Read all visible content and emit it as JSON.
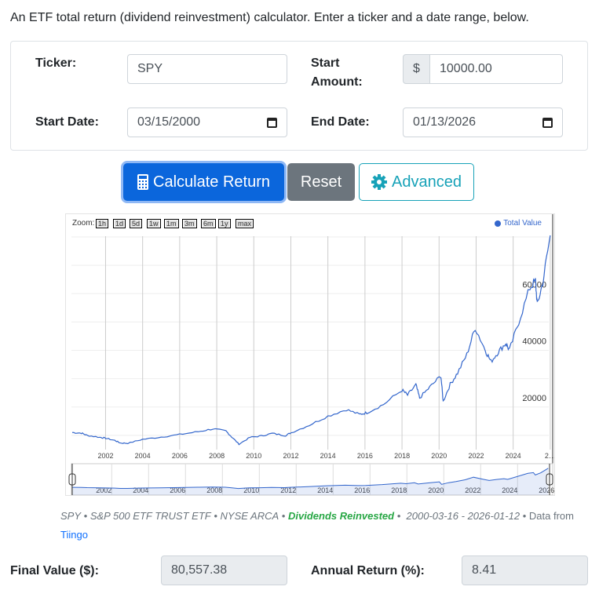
{
  "intro": "An ETF total return (dividend reinvestment) calculator. Enter a ticker and a date range, below.",
  "form": {
    "ticker_label": "Ticker:",
    "ticker_value": "SPY",
    "amount_label": "Start Amount:",
    "amount_prefix": "$",
    "amount_value": "10000.00",
    "start_label": "Start Date:",
    "start_value": "03/15/2000",
    "end_label": "End Date:",
    "end_value": "01/13/2026"
  },
  "buttons": {
    "calculate": "Calculate Return",
    "reset": "Reset",
    "advanced": "Advanced"
  },
  "chart_data": {
    "type": "line",
    "title": "",
    "legend": [
      "Total Value"
    ],
    "legend_position": "top-right",
    "series_color": "#3366cc",
    "zoom_label": "Zoom:",
    "zoom_buttons": [
      "1h",
      "1d",
      "5d",
      "1w",
      "1m",
      "3m",
      "6m",
      "1y",
      "max"
    ],
    "x_ticks": [
      "2002",
      "2004",
      "2006",
      "2008",
      "2010",
      "2012",
      "2014",
      "2016",
      "2018",
      "2020",
      "2022",
      "2024",
      "2…"
    ],
    "nav_ticks": [
      "2002",
      "2004",
      "2006",
      "2008",
      "2010",
      "2012",
      "2014",
      "2016",
      "2018",
      "2020",
      "2022",
      "2024",
      "2026"
    ],
    "y_ticks": [
      "20000",
      "40000",
      "60000"
    ],
    "ylim": [
      0,
      80000
    ],
    "series": [
      {
        "name": "Total Value",
        "x": [
          2000.2,
          2000.7,
          2001.0,
          2001.7,
          2002.0,
          2002.5,
          2002.8,
          2003.2,
          2004.0,
          2005.0,
          2006.0,
          2007.0,
          2007.8,
          2008.5,
          2008.8,
          2009.2,
          2009.8,
          2010.4,
          2011.0,
          2011.7,
          2012.0,
          2013.0,
          2014.0,
          2015.0,
          2015.7,
          2016.1,
          2017.0,
          2018.0,
          2018.3,
          2018.75,
          2018.95,
          2019.5,
          2020.1,
          2020.22,
          2020.6,
          2021.0,
          2021.5,
          2021.95,
          2022.5,
          2022.8,
          2023.2,
          2023.6,
          2023.8,
          2024.3,
          2024.9,
          2025.2,
          2025.3,
          2025.6,
          2026.0
        ],
        "y": [
          11000,
          10800,
          10000,
          9300,
          9000,
          8200,
          7300,
          7200,
          8600,
          9400,
          10300,
          11300,
          12300,
          11500,
          9500,
          6900,
          9300,
          9800,
          10700,
          9900,
          10900,
          13600,
          16800,
          19100,
          17400,
          18000,
          20900,
          26000,
          24200,
          27800,
          23200,
          27000,
          31000,
          22000,
          28000,
          32000,
          38500,
          48000,
          40000,
          36000,
          39500,
          42500,
          40000,
          50000,
          62000,
          64500,
          56000,
          64000,
          80557
        ]
      }
    ]
  },
  "footer": {
    "ticker": "SPY",
    "name": "S&P 500 ETF TRUST ETF",
    "exchange": "NYSE ARCA",
    "div": "Dividends Reinvested",
    "range": "2000-03-16 - 2026-01-12",
    "data_from": "Data from",
    "source": "Tiingo",
    "sep": "•"
  },
  "results": {
    "final_label": "Final Value ($):",
    "final_value": "80,557.38",
    "annual_label": "Annual Return (%):",
    "annual_value": "8.41"
  }
}
